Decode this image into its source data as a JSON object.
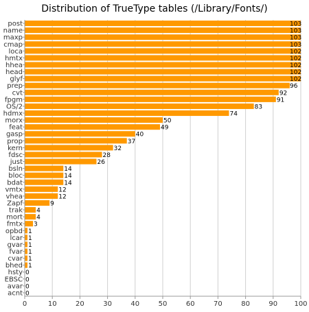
{
  "chart_data": {
    "type": "bar",
    "orientation": "horizontal",
    "title": "Distribution of TrueType tables (/Library/Fonts/)",
    "xlabel": "",
    "ylabel": "",
    "xlim": [
      0,
      100
    ],
    "xticks": [
      0,
      10,
      20,
      30,
      40,
      50,
      60,
      70,
      80,
      90,
      100
    ],
    "grid": true,
    "bar_color": "#FF9900",
    "categories": [
      "post",
      "name",
      "maxp",
      "cmap",
      "loca",
      "hmtx",
      "hhea",
      "head",
      "glyf",
      "prep",
      "cvt",
      "fpgm",
      "OS/2",
      "hdmx",
      "morx",
      "feat",
      "gasp",
      "prop",
      "kern",
      "fdsc",
      "just",
      "bsln",
      "bloc",
      "bdat",
      "vmtx",
      "vhea",
      "Zapf",
      "trak",
      "mort",
      "fmtx",
      "opbd",
      "lcar",
      "gvar",
      "fvar",
      "cvar",
      "bhed",
      "hsty",
      "EBSC",
      "avar",
      "acnt"
    ],
    "values": [
      103,
      103,
      103,
      103,
      102,
      102,
      102,
      102,
      102,
      96,
      92,
      91,
      83,
      74,
      50,
      49,
      40,
      37,
      32,
      28,
      26,
      14,
      14,
      14,
      12,
      12,
      9,
      4,
      4,
      3,
      1,
      1,
      1,
      1,
      1,
      1,
      0,
      0,
      0,
      0
    ]
  }
}
